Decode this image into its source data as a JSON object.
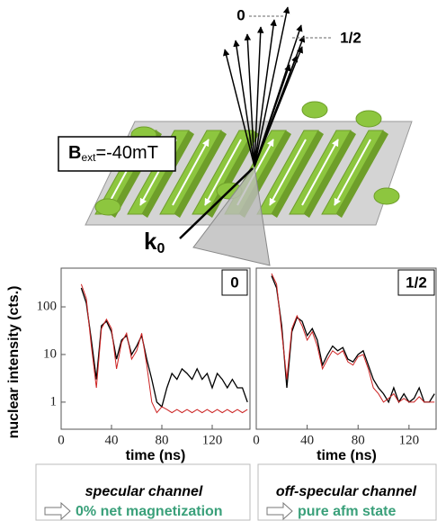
{
  "chart_data": [
    {
      "type": "line",
      "panel_label": "0",
      "ylabel": "nuclear intensity (cts.)",
      "xlabel": "time (ns)",
      "log_y": true,
      "xlim": [
        0,
        150
      ],
      "ylim": [
        0.27,
        650
      ],
      "xticks": [
        0,
        40,
        80,
        120
      ],
      "yticks": [
        1,
        10,
        100
      ],
      "x": [
        16,
        20,
        24,
        28,
        32,
        36,
        40,
        44,
        48,
        52,
        56,
        60,
        64,
        68,
        72,
        76,
        80,
        84,
        88,
        92,
        96,
        100,
        104,
        108,
        112,
        116,
        120,
        124,
        128,
        132,
        136,
        140,
        144,
        148
      ],
      "series": [
        {
          "color": "#000000",
          "values": [
            250,
            120,
            20,
            3,
            40,
            50,
            30,
            8,
            20,
            25,
            10,
            15,
            25,
            8,
            3,
            1,
            0.8,
            2,
            4,
            3,
            5,
            4,
            3,
            5,
            3,
            4,
            2,
            4,
            3,
            2,
            3,
            2,
            2,
            1
          ]
        },
        {
          "color": "#cc2222",
          "values": [
            300,
            150,
            15,
            2,
            35,
            55,
            35,
            5,
            18,
            28,
            8,
            12,
            28,
            6,
            1,
            0.6,
            0.8,
            0.7,
            0.6,
            0.7,
            0.6,
            0.7,
            0.6,
            0.7,
            0.6,
            0.7,
            0.6,
            0.7,
            0.6,
            0.7,
            0.6,
            0.7,
            0.6,
            0.7
          ]
        }
      ]
    },
    {
      "type": "line",
      "panel_label": "1/2",
      "xlabel": "time (ns)",
      "log_y": true,
      "xlim": [
        0,
        142
      ],
      "ylim": [
        0.27,
        650
      ],
      "xticks": [
        0,
        40,
        80,
        120
      ],
      "x": [
        12,
        16,
        20,
        24,
        28,
        32,
        36,
        40,
        44,
        48,
        52,
        56,
        60,
        64,
        68,
        72,
        76,
        80,
        84,
        88,
        92,
        96,
        100,
        104,
        108,
        112,
        116,
        120,
        124,
        128,
        132,
        136,
        140
      ],
      "series": [
        {
          "color": "#000000",
          "values": [
            450,
            250,
            40,
            2,
            30,
            60,
            50,
            25,
            35,
            20,
            6,
            10,
            15,
            12,
            14,
            8,
            7,
            10,
            12,
            6,
            3,
            2,
            1.5,
            1,
            2,
            1,
            1.5,
            1,
            1.2,
            2,
            1,
            1,
            1.5
          ]
        },
        {
          "color": "#cc2222",
          "values": [
            500,
            300,
            30,
            3,
            35,
            65,
            40,
            20,
            30,
            15,
            5,
            8,
            12,
            10,
            12,
            7,
            6,
            9,
            10,
            5,
            2,
            1.5,
            1,
            1.2,
            1.5,
            1,
            1.2,
            1,
            1,
            1.3,
            1,
            1,
            1
          ]
        }
      ]
    }
  ],
  "diagram": {
    "specular_label": "0",
    "offspecular_label": "1/2",
    "field_label": {
      "symbol": "B",
      "subscript": "ext",
      "value": "=-40mT"
    },
    "beam_label": {
      "symbol": "k",
      "subscript": "0"
    }
  },
  "captions": [
    {
      "title": "specular channel",
      "result": "0% net magnetization"
    },
    {
      "title": "off-specular channel",
      "result": "pure afm state"
    }
  ]
}
